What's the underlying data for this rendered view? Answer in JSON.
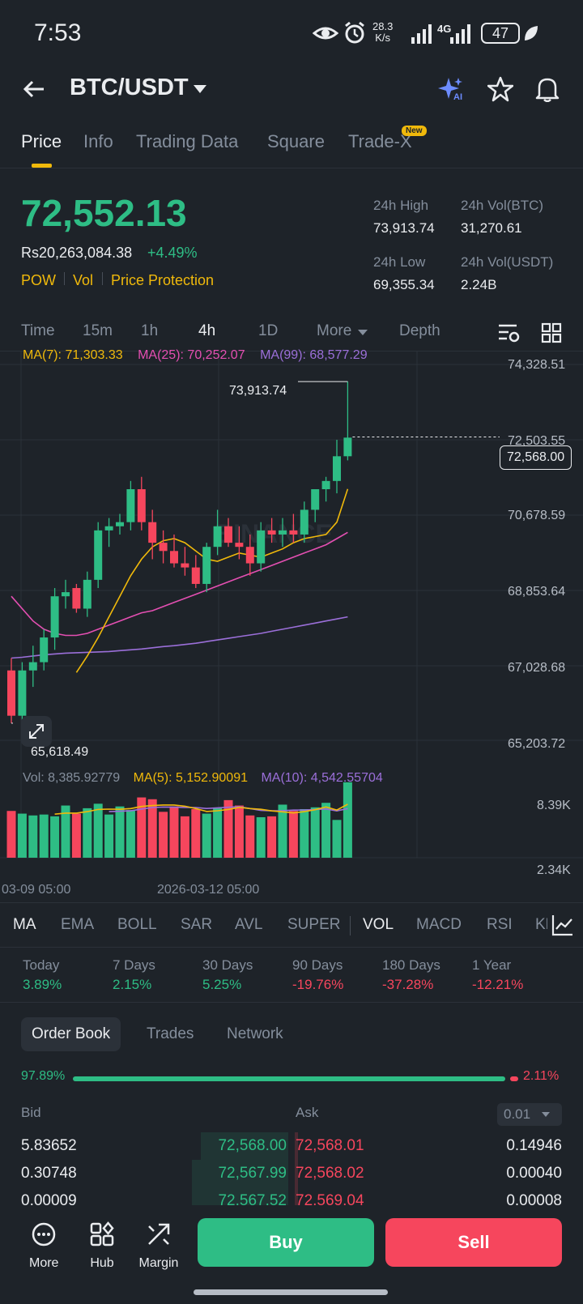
{
  "status_bar": {
    "time": "7:53",
    "net_speed_value": "28.3",
    "net_speed_unit": "K/s",
    "network": "4G",
    "battery": "47"
  },
  "header": {
    "pair": "BTC/USDT",
    "ai_label": "AI"
  },
  "tabs": [
    {
      "label": "Price",
      "active": true
    },
    {
      "label": "Info",
      "active": false
    },
    {
      "label": "Trading Data",
      "active": false
    },
    {
      "label": "Square",
      "active": false
    },
    {
      "label": "Trade-X",
      "active": false
    }
  ],
  "new_badge": "New",
  "price": {
    "last": "72,552.13",
    "fiat": "Rs20,263,084.38",
    "change": "+4.49%",
    "tags": [
      "POW",
      "Vol",
      "Price Protection"
    ],
    "high_label": "24h High",
    "high": "73,913.74",
    "low_label": "24h Low",
    "low": "69,355.34",
    "vol_btc_label": "24h Vol(BTC)",
    "vol_btc": "31,270.61",
    "vol_usdt_label": "24h Vol(USDT)",
    "vol_usdt": "2.24B"
  },
  "intervals": [
    {
      "label": "Time",
      "active": false
    },
    {
      "label": "15m",
      "active": false
    },
    {
      "label": "1h",
      "active": false
    },
    {
      "label": "4h",
      "active": true
    },
    {
      "label": "1D",
      "active": false
    },
    {
      "label": "More",
      "active": false
    },
    {
      "label": "Depth",
      "active": false
    }
  ],
  "chart": {
    "ma7_label": "MA(7): 71,303.33",
    "ma25_label": "MA(25): 70,252.07",
    "ma99_label": "MA(99): 68,577.29",
    "y_ticks": [
      "74,328.51",
      "72,503.55",
      "70,678.59",
      "68,853.64",
      "67,028.68",
      "65,203.72"
    ],
    "current_price_tag": "72,568.00",
    "high_marker": "73,913.74",
    "low_marker": "65,618.49",
    "watermark": "BINANCE",
    "vol_label": "Vol: 8,385.92779",
    "vol_ma5_label": "MA(5): 5,152.90091",
    "vol_ma10_label": "MA(10): 4,542.55704",
    "vol_ticks": [
      "8.39K",
      "2.34K"
    ],
    "x_labels": [
      "03-09 05:00",
      "2026-03-12 05:00"
    ],
    "colors": {
      "up": "#2ebd85",
      "down": "#f6465d",
      "ma7": "#f0b90b",
      "ma25": "#e44fb2",
      "ma99": "#9b6fd9"
    }
  },
  "chart_data": {
    "type": "candlestick",
    "candles": [
      {
        "o": 66900,
        "h": 67200,
        "l": 65618.49,
        "c": 65800
      },
      {
        "o": 65800,
        "h": 67100,
        "l": 65700,
        "c": 66900
      },
      {
        "o": 66900,
        "h": 67500,
        "l": 66500,
        "c": 67100
      },
      {
        "o": 67100,
        "h": 67900,
        "l": 66900,
        "c": 67700
      },
      {
        "o": 67700,
        "h": 68900,
        "l": 67400,
        "c": 68700
      },
      {
        "o": 68700,
        "h": 69100,
        "l": 68400,
        "c": 68800
      },
      {
        "o": 68900,
        "h": 69000,
        "l": 68300,
        "c": 68400
      },
      {
        "o": 68400,
        "h": 69300,
        "l": 68200,
        "c": 69100
      },
      {
        "o": 69100,
        "h": 70500,
        "l": 68900,
        "c": 70300
      },
      {
        "o": 70300,
        "h": 70600,
        "l": 69900,
        "c": 70400
      },
      {
        "o": 70400,
        "h": 70700,
        "l": 70200,
        "c": 70500
      },
      {
        "o": 70500,
        "h": 71500,
        "l": 70300,
        "c": 71300
      },
      {
        "o": 71300,
        "h": 71600,
        "l": 70300,
        "c": 70500
      },
      {
        "o": 70500,
        "h": 70800,
        "l": 69600,
        "c": 70000
      },
      {
        "o": 70000,
        "h": 70300,
        "l": 69500,
        "c": 69800
      },
      {
        "o": 69800,
        "h": 70200,
        "l": 69400,
        "c": 69500
      },
      {
        "o": 69500,
        "h": 69900,
        "l": 69200,
        "c": 69400
      },
      {
        "o": 69400,
        "h": 69700,
        "l": 68900,
        "c": 69000
      },
      {
        "o": 69000,
        "h": 70000,
        "l": 68800,
        "c": 69900
      },
      {
        "o": 69900,
        "h": 70800,
        "l": 69700,
        "c": 70400
      },
      {
        "o": 70400,
        "h": 70600,
        "l": 69900,
        "c": 70000
      },
      {
        "o": 70000,
        "h": 70400,
        "l": 69600,
        "c": 69900
      },
      {
        "o": 69900,
        "h": 70200,
        "l": 69200,
        "c": 69500
      },
      {
        "o": 69500,
        "h": 70500,
        "l": 69300,
        "c": 70300
      },
      {
        "o": 70300,
        "h": 70600,
        "l": 70000,
        "c": 70200
      },
      {
        "o": 70200,
        "h": 70600,
        "l": 69900,
        "c": 70300
      },
      {
        "o": 70300,
        "h": 70700,
        "l": 70000,
        "c": 70200
      },
      {
        "o": 70200,
        "h": 71000,
        "l": 70000,
        "c": 70800
      },
      {
        "o": 70800,
        "h": 71300,
        "l": 70500,
        "c": 71300
      },
      {
        "o": 71300,
        "h": 71600,
        "l": 71000,
        "c": 71500
      },
      {
        "o": 71500,
        "h": 72500,
        "l": 71200,
        "c": 72100
      },
      {
        "o": 72100,
        "h": 73913.74,
        "l": 72000,
        "c": 72552.13
      }
    ],
    "ma7": [
      null,
      null,
      null,
      null,
      null,
      null,
      66850,
      67250,
      67700,
      68200,
      68700,
      69200,
      69600,
      69900,
      70050,
      70100,
      70000,
      69800,
      69600,
      69550,
      69650,
      69750,
      69700,
      69650,
      69750,
      69850,
      70000,
      70100,
      70150,
      70200,
      70500,
      71303.33
    ],
    "ma25": [
      68700,
      68400,
      68100,
      67900,
      67800,
      67750,
      67750,
      67800,
      67900,
      68000,
      68100,
      68200,
      68300,
      68350,
      68450,
      68550,
      68650,
      68750,
      68850,
      68950,
      69050,
      69150,
      69250,
      69350,
      69450,
      69550,
      69650,
      69750,
      69850,
      69950,
      70100,
      70252.07
    ],
    "ma99": [
      67200,
      67220,
      67250,
      67280,
      67300,
      67320,
      67330,
      67340,
      67350,
      67360,
      67380,
      67400,
      67420,
      67450,
      67480,
      67500,
      67530,
      67560,
      67600,
      67640,
      67680,
      67720,
      67760,
      67800,
      67850,
      67900,
      67950,
      68000,
      68050,
      68100,
      68150,
      68200
    ],
    "volume": [
      5200,
      4900,
      4700,
      4800,
      4600,
      5800,
      4900,
      5500,
      6000,
      4800,
      5700,
      5300,
      6700,
      6500,
      5100,
      5700,
      4600,
      5400,
      4900,
      5500,
      6400,
      5800,
      4700,
      4500,
      4600,
      5900,
      5200,
      5400,
      5600,
      6100,
      4200,
      8385.92779
    ],
    "y_range": [
      65203.72,
      74328.51
    ],
    "current_price": 72568.0
  },
  "indicator_tabs": [
    {
      "label": "MA",
      "active": true
    },
    {
      "label": "EMA",
      "active": false
    },
    {
      "label": "BOLL",
      "active": false
    },
    {
      "label": "SAR",
      "active": false
    },
    {
      "label": "AVL",
      "active": false
    },
    {
      "label": "SUPER",
      "active": false
    },
    {
      "label": "VOL",
      "active": true
    },
    {
      "label": "MACD",
      "active": false
    },
    {
      "label": "RSI",
      "active": false
    },
    {
      "label": "KDJ",
      "active": false
    }
  ],
  "performance": [
    {
      "label": "Today",
      "value": "3.89%",
      "color": "#2ebd85"
    },
    {
      "label": "7 Days",
      "value": "2.15%",
      "color": "#2ebd85"
    },
    {
      "label": "30 Days",
      "value": "5.25%",
      "color": "#2ebd85"
    },
    {
      "label": "90 Days",
      "value": "-19.76%",
      "color": "#f6465d"
    },
    {
      "label": "180 Days",
      "value": "-37.28%",
      "color": "#f6465d"
    },
    {
      "label": "1 Year",
      "value": "-12.21%",
      "color": "#f6465d"
    }
  ],
  "orderbook_tabs": [
    {
      "label": "Order Book",
      "active": true
    },
    {
      "label": "Trades",
      "active": false
    },
    {
      "label": "Network",
      "active": false
    }
  ],
  "orderbook": {
    "bid_pct": "97.89%",
    "ask_pct": "2.11%",
    "bid_ratio": 0.9789,
    "bid_header": "Bid",
    "ask_header": "Ask",
    "precision": "0.01",
    "rows": [
      {
        "bid_qty": "5.83652",
        "bid_price": "72,568.00",
        "ask_price": "72,568.01",
        "ask_qty": "0.14946",
        "bid_depth": 0.3,
        "ask_depth": 0.01
      },
      {
        "bid_qty": "0.30748",
        "bid_price": "72,567.99",
        "ask_price": "72,568.02",
        "ask_qty": "0.00040",
        "bid_depth": 0.33,
        "ask_depth": 0.01
      },
      {
        "bid_qty": "0.00009",
        "bid_price": "72,567.52",
        "ask_price": "72,569.04",
        "ask_qty": "0.00008",
        "bid_depth": 0.33,
        "ask_depth": 0.01
      }
    ]
  },
  "bottom_bar": {
    "more": "More",
    "hub": "Hub",
    "margin": "Margin",
    "buy": "Buy",
    "sell": "Sell"
  }
}
